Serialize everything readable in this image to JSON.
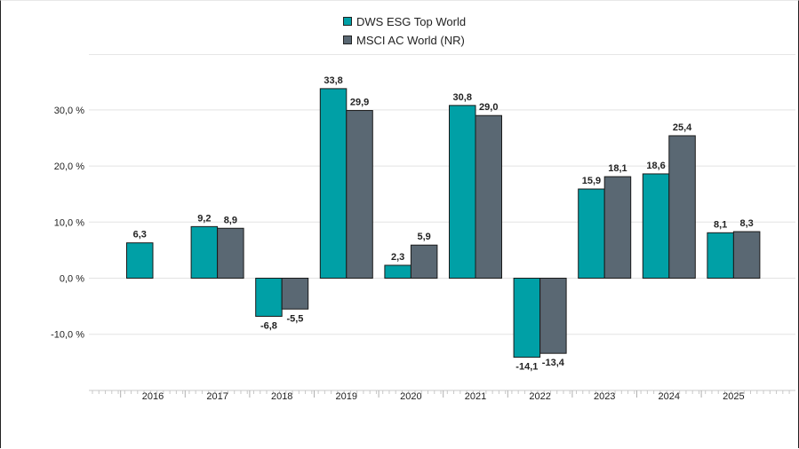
{
  "chart_data": {
    "type": "bar",
    "categories": [
      "2016",
      "2017",
      "2018",
      "2019",
      "2020",
      "2021",
      "2022",
      "2023",
      "2024",
      "2025"
    ],
    "series": [
      {
        "name": "DWS ESG Top World",
        "color": "#00a0a6",
        "values": [
          6.3,
          9.2,
          -6.8,
          33.8,
          2.3,
          30.8,
          -14.1,
          15.9,
          18.6,
          8.1
        ]
      },
      {
        "name": "MSCI AC World (NR)",
        "color": "#5a6873",
        "values": [
          null,
          8.9,
          -5.5,
          29.9,
          5.9,
          29.0,
          -13.4,
          18.1,
          25.4,
          8.3
        ]
      }
    ],
    "value_labels": [
      [
        "6,3",
        "9,2",
        "-6,8",
        "33,8",
        "2,3",
        "30,8",
        "-14,1",
        "15,9",
        "18,6",
        "8,1"
      ],
      [
        "",
        "8,9",
        "-5,5",
        "29,9",
        "5,9",
        "29,0",
        "-13,4",
        "18,1",
        "25,4",
        "8,3"
      ]
    ],
    "y_ticks": [
      {
        "value": 30,
        "label": "30,0 %"
      },
      {
        "value": 20,
        "label": "20,0 %"
      },
      {
        "value": 10,
        "label": "10,0 %"
      },
      {
        "value": 0,
        "label": "0,0 %"
      },
      {
        "value": -10,
        "label": "-10,0 %"
      }
    ],
    "ylim": [
      -20,
      40
    ],
    "grid": true,
    "legend": "top-center",
    "title": "",
    "xlabel": "",
    "ylabel": ""
  }
}
